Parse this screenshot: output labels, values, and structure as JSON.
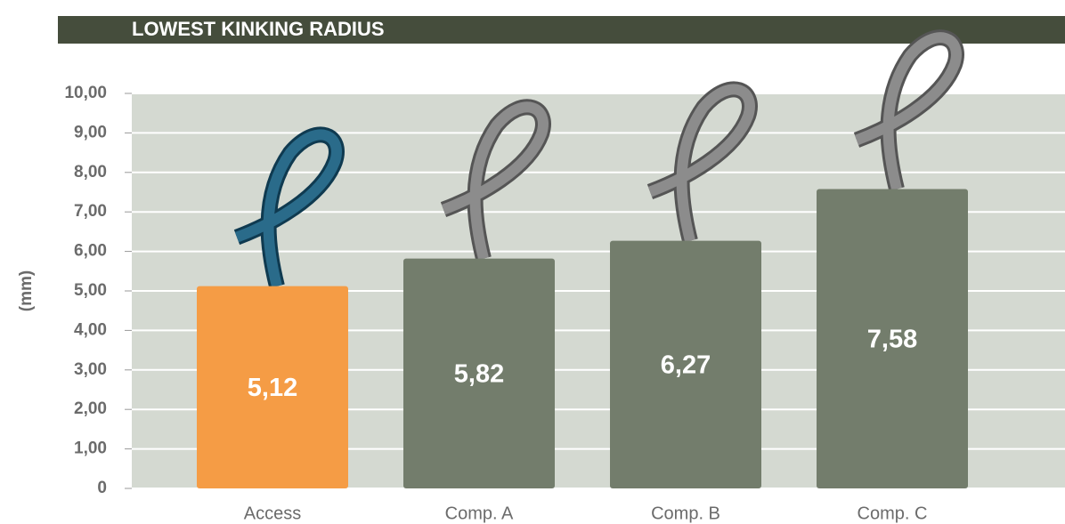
{
  "chart_data": {
    "type": "bar",
    "title": "LOWEST KINKING RADIUS",
    "y_label": "(mm)",
    "categories": [
      "Access",
      "Comp. A",
      "Comp. B",
      "Comp. C"
    ],
    "values": [
      5.12,
      5.82,
      6.27,
      7.58
    ],
    "value_labels": [
      "5,12",
      "5,82",
      "6,27",
      "7,58"
    ],
    "colors": [
      "#f59c45",
      "#737d6c",
      "#737d6c",
      "#737d6c"
    ],
    "ylim": [
      0,
      10
    ],
    "yticks": [
      0,
      {
        "value": 1,
        "label": "1,00"
      },
      {
        "value": 2,
        "label": "2,00"
      },
      {
        "value": 3,
        "label": "3,00"
      },
      {
        "value": 4,
        "label": "4,00"
      },
      {
        "value": 5,
        "label": "5,00"
      },
      {
        "value": 6,
        "label": "6,00"
      },
      {
        "value": 7,
        "label": "7,00"
      },
      {
        "value": 8,
        "label": "8,00"
      },
      {
        "value": 9,
        "label": "9,00"
      },
      {
        "value": 10,
        "label": "10,00"
      }
    ],
    "grid": true
  }
}
